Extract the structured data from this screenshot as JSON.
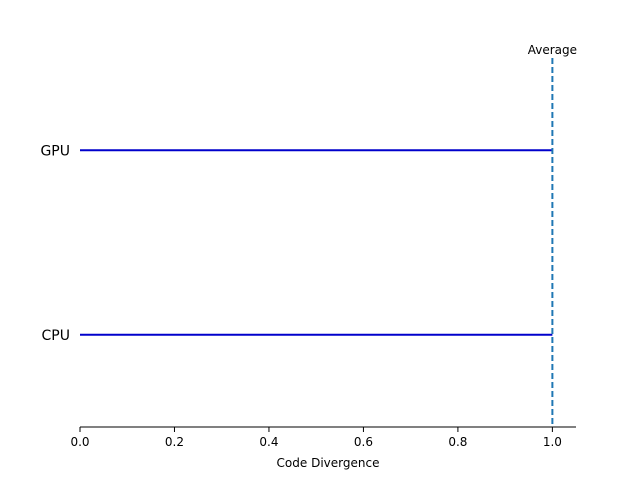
{
  "chart_data": {
    "type": "bar",
    "orientation": "horizontal",
    "categories": [
      "CPU",
      "GPU"
    ],
    "values": [
      1.0,
      1.0
    ],
    "bar_color": "#0000cc",
    "xlabel": "Code Divergence",
    "ylabel": "",
    "xlim": [
      0,
      1.05
    ],
    "x_ticks": [
      0.0,
      0.2,
      0.4,
      0.6,
      0.8,
      1.0
    ],
    "x_tick_labels": [
      "0.0",
      "0.2",
      "0.4",
      "0.6",
      "0.8",
      "1.0"
    ],
    "grid": false,
    "reference_line": {
      "value": 1.0,
      "label": "Average",
      "color": "#1f77b4",
      "style": "dashed"
    }
  }
}
